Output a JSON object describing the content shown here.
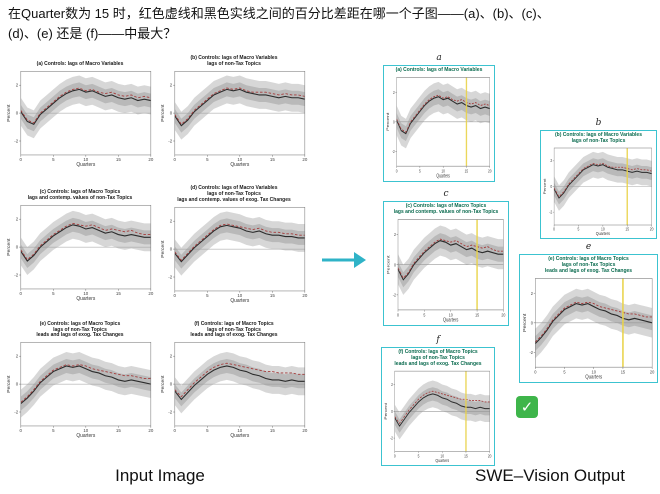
{
  "question": {
    "text": "在Quarter数为 15 时，红色虚线和黑色实线之间的百分比差距在哪一个子图——(a)、(b)、(c)、\n(d)、(e) 还是 (f)——中最大？"
  },
  "captions": {
    "input": "Input Image",
    "output": "SWE–Vision Output"
  },
  "answer_checkmark": "✓",
  "colors": {
    "solid_line": "#2b2b2b",
    "dashed_line": "#a53a3a",
    "band_inner": "#b9b9b9",
    "band_outer": "#d7d7d7",
    "zero_line": "#999999",
    "axis": "#777777",
    "highlight_line": "#e9d34a",
    "panel_border": "#3cc3d0",
    "arrow": "#2fb3c7",
    "check_green": "#3eb54a",
    "output_title": "#0b6b4f"
  },
  "chart_data": {
    "type": "line",
    "x": [
      0,
      1,
      2,
      3,
      4,
      5,
      6,
      7,
      8,
      9,
      10,
      11,
      12,
      13,
      14,
      15,
      16,
      17,
      18,
      19,
      20
    ],
    "xlabel": "Quarters",
    "ylabel": "Percent",
    "ylim": [
      -3,
      3
    ],
    "xticks": [
      0,
      5,
      10,
      15,
      20
    ],
    "yticks": [
      -2,
      0,
      2
    ],
    "highlight_x": 15,
    "panels": [
      {
        "id": "a",
        "title": "(a) Controls: lags of Macro Variables",
        "band_inner": 0.5,
        "band_outer": 1.0,
        "solid": [
          0.1,
          -0.6,
          -0.8,
          -0.1,
          0.3,
          0.7,
          1.1,
          1.4,
          1.6,
          1.7,
          1.5,
          1.6,
          1.4,
          1.2,
          1.3,
          1.1,
          1.0,
          1.1,
          0.9,
          1.0,
          0.9
        ],
        "dashed": [
          0.2,
          -0.5,
          -0.7,
          0.0,
          0.4,
          0.8,
          1.2,
          1.5,
          1.7,
          1.8,
          1.6,
          1.7,
          1.5,
          1.4,
          1.5,
          1.3,
          1.2,
          1.3,
          1.1,
          1.2,
          1.1
        ]
      },
      {
        "id": "b",
        "title": "(b) Controls: lags of Macro Variables\nlags of non-Tax Topics",
        "band_inner": 0.5,
        "band_outer": 1.0,
        "solid": [
          -0.2,
          -0.9,
          -0.5,
          0.1,
          0.5,
          0.9,
          1.3,
          1.5,
          1.7,
          1.6,
          1.7,
          1.5,
          1.4,
          1.3,
          1.3,
          1.2,
          1.1,
          1.2,
          1.1,
          1.1,
          1.0
        ],
        "dashed": [
          -0.1,
          -0.8,
          -0.4,
          0.2,
          0.6,
          1.0,
          1.4,
          1.6,
          1.8,
          1.7,
          1.8,
          1.6,
          1.5,
          1.5,
          1.5,
          1.4,
          1.3,
          1.4,
          1.3,
          1.3,
          1.2
        ]
      },
      {
        "id": "c",
        "title": "(c) Controls: lags of Macro Topics\nlags and contemp. values of non-Tax Topics",
        "band_inner": 0.5,
        "band_outer": 1.0,
        "solid": [
          -0.3,
          -1.0,
          -0.6,
          0.0,
          0.4,
          0.8,
          1.1,
          1.4,
          1.6,
          1.5,
          1.3,
          1.4,
          1.2,
          1.0,
          1.1,
          0.9,
          0.8,
          0.9,
          0.8,
          0.7,
          0.7
        ],
        "dashed": [
          -0.2,
          -0.9,
          -0.5,
          0.1,
          0.5,
          0.9,
          1.2,
          1.5,
          1.7,
          1.6,
          1.5,
          1.6,
          1.4,
          1.2,
          1.3,
          1.2,
          1.1,
          1.2,
          1.0,
          0.9,
          0.9
        ]
      },
      {
        "id": "d",
        "title": "(d) Controls: lags of Macro Variables\nlags of non-Tax Topics\nlags and contemp. values of exog. Tax Changes",
        "band_inner": 0.5,
        "band_outer": 1.0,
        "solid": [
          -0.3,
          -0.9,
          -0.4,
          0.1,
          0.5,
          0.9,
          1.3,
          1.6,
          1.7,
          1.6,
          1.5,
          1.3,
          1.2,
          1.3,
          1.1,
          1.0,
          1.0,
          0.9,
          0.9,
          0.8,
          0.8
        ],
        "dashed": [
          -0.2,
          -0.8,
          -0.3,
          0.2,
          0.6,
          1.0,
          1.4,
          1.7,
          1.8,
          1.7,
          1.6,
          1.5,
          1.4,
          1.5,
          1.3,
          1.2,
          1.2,
          1.1,
          1.1,
          1.0,
          1.0
        ]
      },
      {
        "id": "e",
        "title": "(e) Controls: lags of Macro Topics\nlags of non-Tax Topics\nleads and lags of exog. Tax Changes",
        "band_inner": 0.5,
        "band_outer": 1.0,
        "solid": [
          -1.4,
          -1.0,
          -0.5,
          0.1,
          0.5,
          0.9,
          1.1,
          1.3,
          1.2,
          1.3,
          1.1,
          0.9,
          0.8,
          0.6,
          0.5,
          0.3,
          0.2,
          0.3,
          0.2,
          0.1,
          0.0
        ],
        "dashed": [
          -1.3,
          -0.9,
          -0.4,
          0.2,
          0.6,
          1.0,
          1.2,
          1.4,
          1.3,
          1.4,
          1.3,
          1.1,
          1.0,
          0.9,
          0.8,
          0.7,
          0.6,
          0.6,
          0.5,
          0.4,
          0.4
        ]
      },
      {
        "id": "f",
        "title": "(f) Controls: lags of Macro Topics\nlags of non-Tax Topics\nleads and lags of exog. Tax Changes",
        "band_inner": 0.5,
        "band_outer": 1.0,
        "solid": [
          -0.5,
          -1.1,
          -0.6,
          -0.1,
          0.3,
          0.7,
          1.0,
          1.2,
          1.3,
          1.2,
          1.0,
          0.9,
          0.7,
          0.6,
          0.4,
          0.3,
          0.3,
          0.2,
          0.3,
          0.2,
          0.2
        ],
        "dashed": [
          -0.4,
          -0.9,
          -0.4,
          0.1,
          0.5,
          0.9,
          1.2,
          1.4,
          1.5,
          1.4,
          1.3,
          1.2,
          1.1,
          1.0,
          0.9,
          0.9,
          0.8,
          0.8,
          0.8,
          0.7,
          0.7
        ]
      }
    ]
  }
}
